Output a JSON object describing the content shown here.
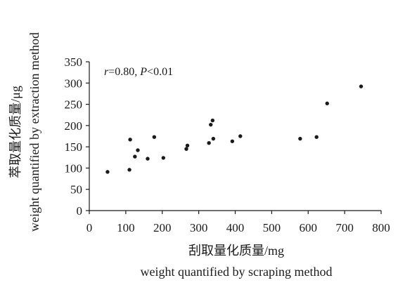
{
  "chart_data": {
    "type": "scatter",
    "xlabel": "刮取量化质量/mg",
    "xlabel_en": "weight quantified by scraping method",
    "ylabel": "萃取量化质量/μg",
    "ylabel_en": "weight quantified by extraction method",
    "annotation": {
      "r_symbol": "r",
      "r_text": "=0.80, ",
      "p_symbol": "P",
      "p_text": "<0.01"
    },
    "xlim": [
      0,
      800
    ],
    "ylim": [
      0,
      350
    ],
    "xticks": [
      0,
      100,
      200,
      300,
      400,
      500,
      600,
      700,
      800
    ],
    "yticks": [
      0,
      50,
      100,
      150,
      200,
      250,
      300,
      350
    ],
    "grid": false,
    "points": [
      {
        "x": 50,
        "y": 91
      },
      {
        "x": 110,
        "y": 96
      },
      {
        "x": 112,
        "y": 167
      },
      {
        "x": 125,
        "y": 127
      },
      {
        "x": 133,
        "y": 142
      },
      {
        "x": 160,
        "y": 122
      },
      {
        "x": 178,
        "y": 173
      },
      {
        "x": 203,
        "y": 124
      },
      {
        "x": 266,
        "y": 145
      },
      {
        "x": 269,
        "y": 153
      },
      {
        "x": 328,
        "y": 159
      },
      {
        "x": 333,
        "y": 202
      },
      {
        "x": 338,
        "y": 212
      },
      {
        "x": 340,
        "y": 169
      },
      {
        "x": 392,
        "y": 163
      },
      {
        "x": 414,
        "y": 175
      },
      {
        "x": 578,
        "y": 169
      },
      {
        "x": 623,
        "y": 173
      },
      {
        "x": 652,
        "y": 252
      },
      {
        "x": 745,
        "y": 292
      }
    ],
    "colors": {
      "point": "#1a1a1a",
      "axis": "#1a1a1a",
      "text": "#1a1a1a"
    }
  }
}
